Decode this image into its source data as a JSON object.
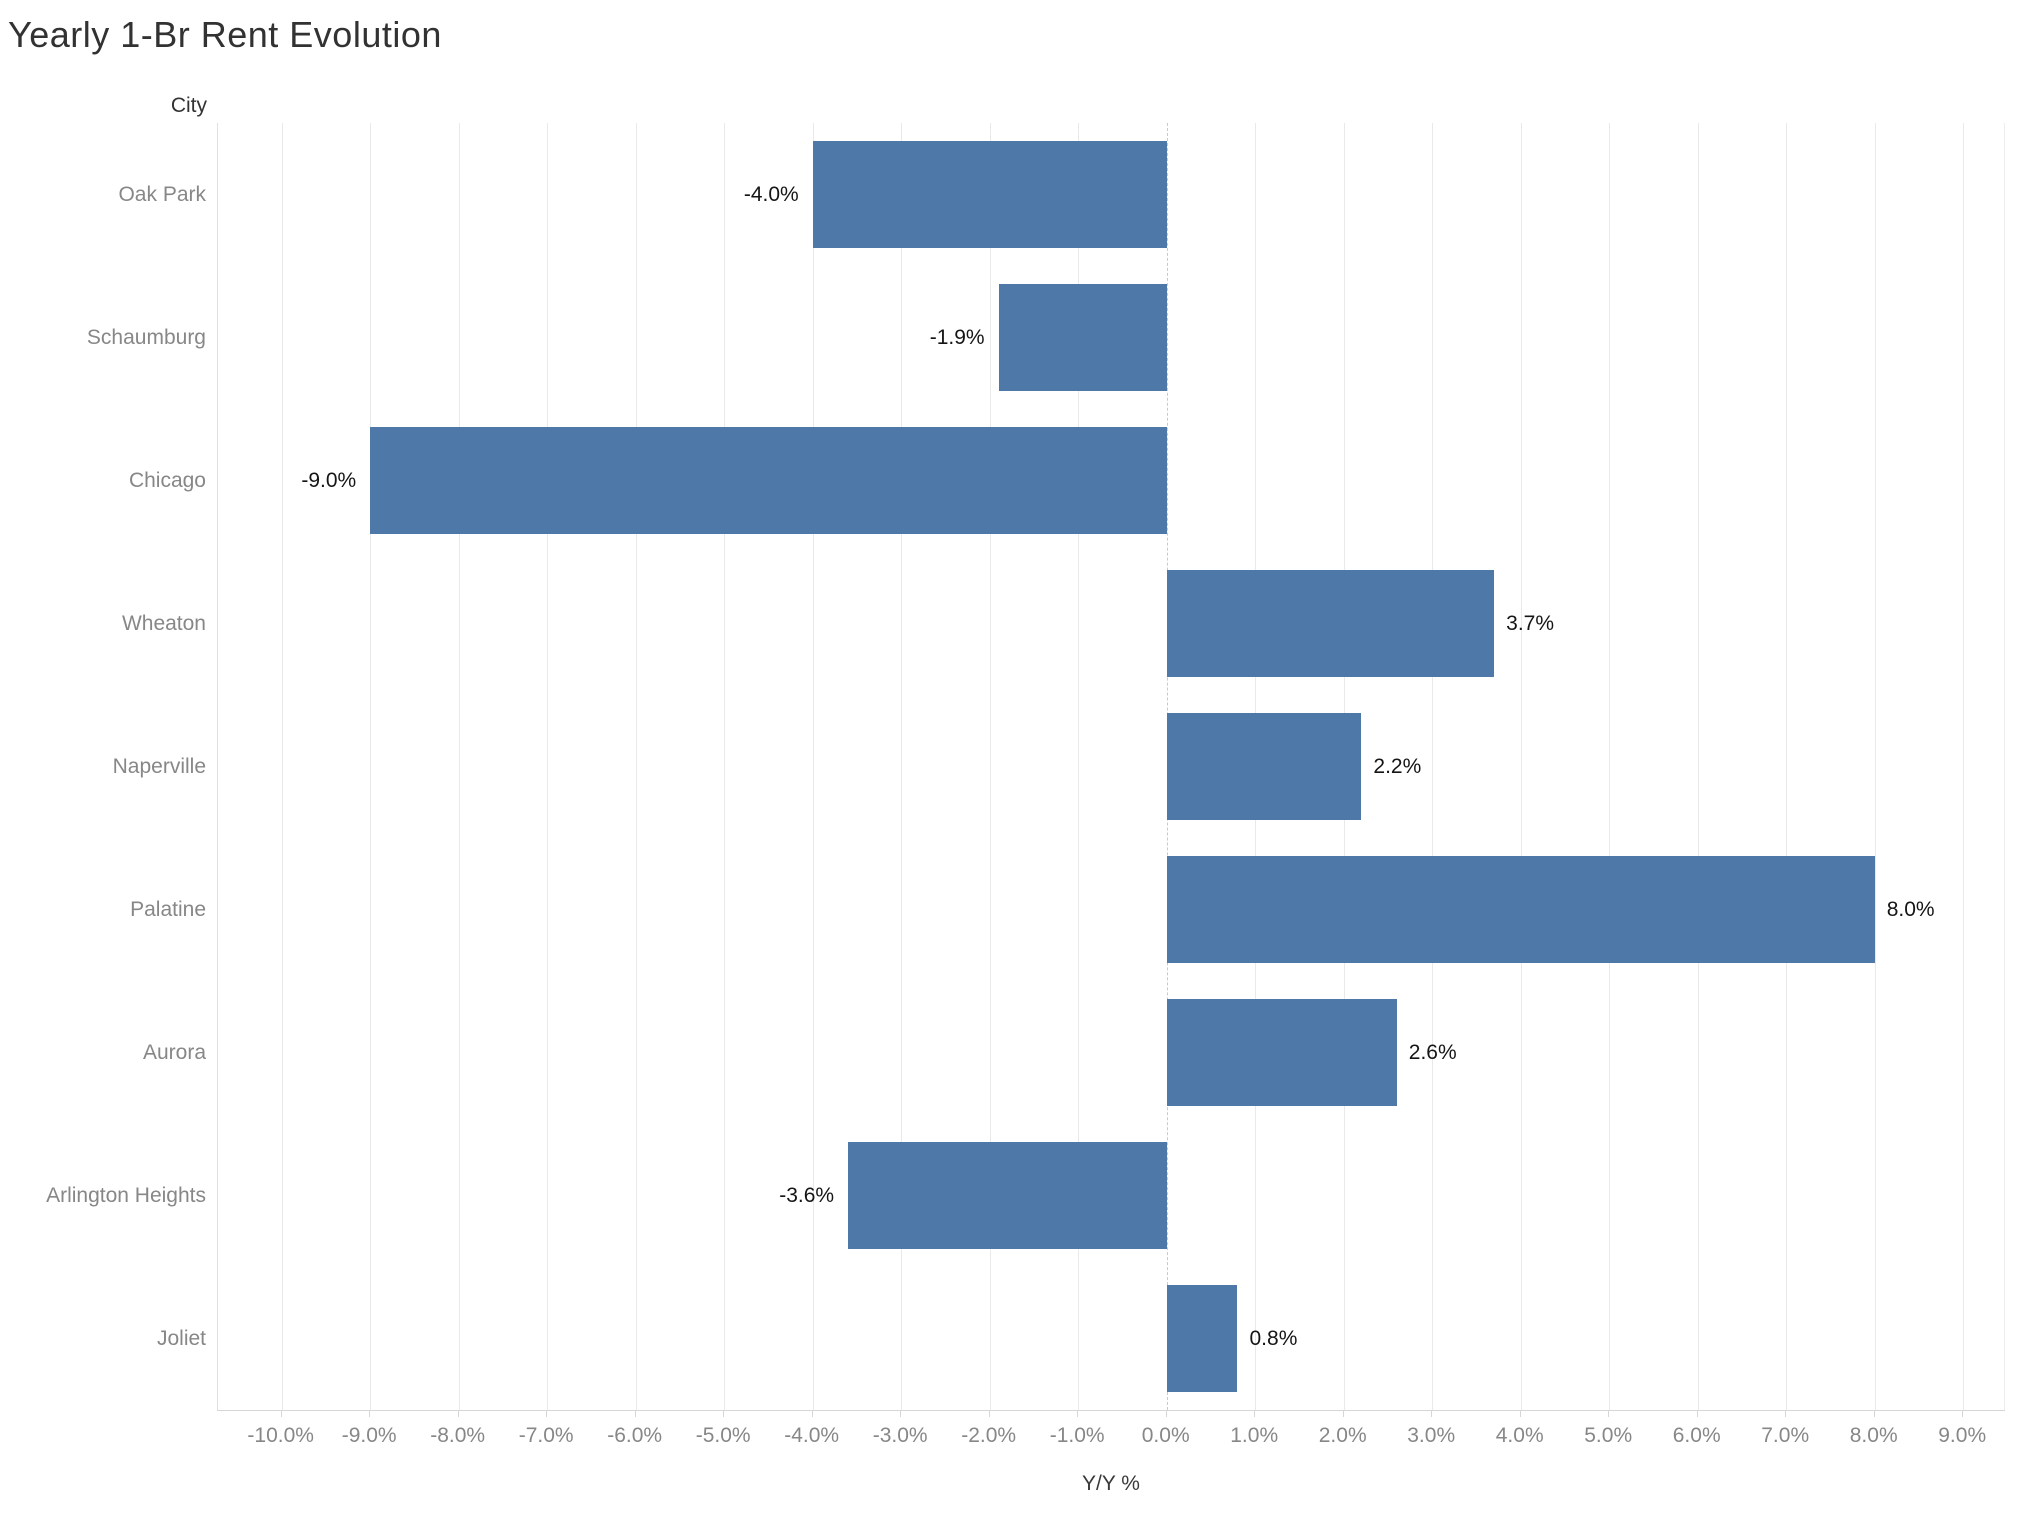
{
  "chart_data": {
    "type": "bar",
    "orientation": "horizontal",
    "title": "Yearly 1-Br Rent Evolution",
    "ylabel": "City",
    "xlabel": "Y/Y %",
    "categories": [
      "Oak Park",
      "Schaumburg",
      "Chicago",
      "Wheaton",
      "Naperville",
      "Palatine",
      "Aurora",
      "Arlington Heights",
      "Joliet"
    ],
    "values": [
      -4.0,
      -1.9,
      -9.0,
      3.7,
      2.2,
      8.0,
      2.6,
      -3.6,
      0.8
    ],
    "value_labels": [
      "-4.0%",
      "-1.9%",
      "-9.0%",
      "3.7%",
      "2.2%",
      "8.0%",
      "2.6%",
      "-3.6%",
      "0.8%"
    ],
    "x_ticks": [
      {
        "value": -10,
        "label": "-10.0%"
      },
      {
        "value": -9,
        "label": "-9.0%"
      },
      {
        "value": -8,
        "label": "-8.0%"
      },
      {
        "value": -7,
        "label": "-7.0%"
      },
      {
        "value": -6,
        "label": "-6.0%"
      },
      {
        "value": -5,
        "label": "-5.0%"
      },
      {
        "value": -4,
        "label": "-4.0%"
      },
      {
        "value": -3,
        "label": "-3.0%"
      },
      {
        "value": -2,
        "label": "-2.0%"
      },
      {
        "value": -1,
        "label": "-1.0%"
      },
      {
        "value": 0,
        "label": "0.0%"
      },
      {
        "value": 1,
        "label": "1.0%"
      },
      {
        "value": 2,
        "label": "2.0%"
      },
      {
        "value": 3,
        "label": "3.0%"
      },
      {
        "value": 4,
        "label": "4.0%"
      },
      {
        "value": 5,
        "label": "5.0%"
      },
      {
        "value": 6,
        "label": "6.0%"
      },
      {
        "value": 7,
        "label": "7.0%"
      },
      {
        "value": 8,
        "label": "8.0%"
      },
      {
        "value": 9,
        "label": "9.0%"
      }
    ],
    "xlim": [
      -10.7,
      9.5
    ],
    "grid": true,
    "zero_line": "dashed",
    "legend": "none",
    "bar_color": "#4d78a8"
  }
}
